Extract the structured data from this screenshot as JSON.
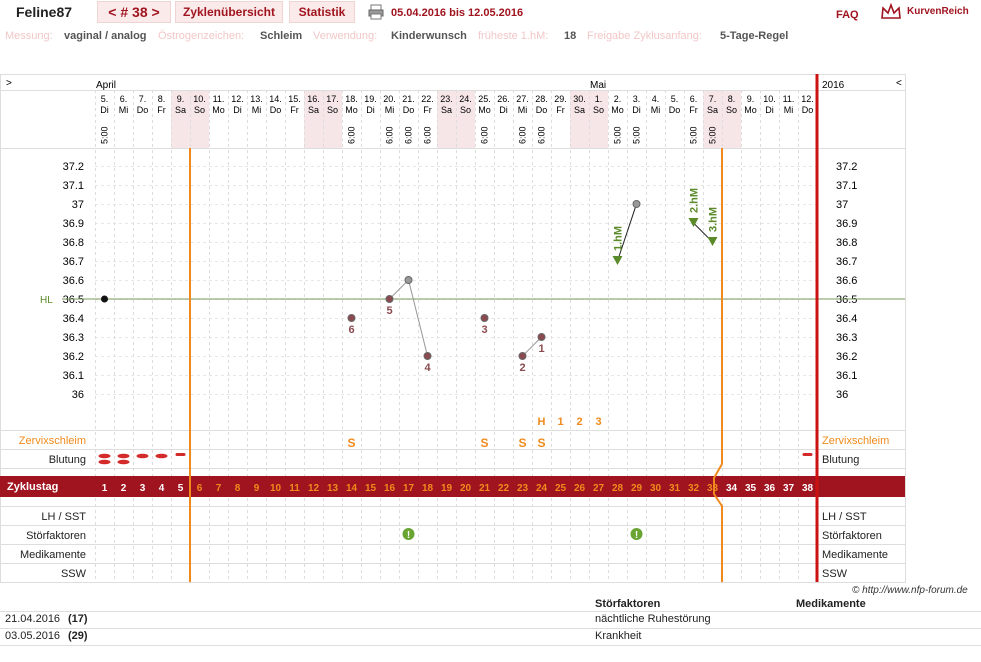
{
  "header": {
    "username": "Feline87",
    "cycle": "< # 38 >",
    "tab_overview": "Zyklenübersicht",
    "tab_stats": "Statistik",
    "date_range": "05.04.2016 bis 12.05.2016",
    "faq": "FAQ",
    "brand": "KurvenReich"
  },
  "meta": {
    "messung_label": "Messung:",
    "messung_value": "vaginal / analog",
    "oestrogen_label": "Östrogenzeichen:",
    "oestrogen_value": "Schleim",
    "verwendung_label": "Verwendung:",
    "verwendung_value": "Kinderwunsch",
    "frueheste_label": "früheste 1.hM:",
    "frueheste_value": "18",
    "freigabe_label": "Freigabe Zyklusanfang:",
    "freigabe_value": "5-Tage-Regel"
  },
  "chart": {
    "nav_left": ">",
    "nav_right": "<",
    "month_april": "April",
    "month_mai": "Mai",
    "year": "2016",
    "days": [
      {
        "d": "5.",
        "w": "Di",
        "t": "5:00",
        "we": false
      },
      {
        "d": "6.",
        "w": "Mi",
        "t": "",
        "we": false
      },
      {
        "d": "7.",
        "w": "Do",
        "t": "",
        "we": false
      },
      {
        "d": "8.",
        "w": "Fr",
        "t": "",
        "we": false
      },
      {
        "d": "9.",
        "w": "Sa",
        "t": "",
        "we": true
      },
      {
        "d": "10.",
        "w": "So",
        "t": "",
        "we": true
      },
      {
        "d": "11.",
        "w": "Mo",
        "t": "",
        "we": false
      },
      {
        "d": "12.",
        "w": "Di",
        "t": "",
        "we": false
      },
      {
        "d": "13.",
        "w": "Mi",
        "t": "",
        "we": false
      },
      {
        "d": "14.",
        "w": "Do",
        "t": "",
        "we": false
      },
      {
        "d": "15.",
        "w": "Fr",
        "t": "",
        "we": false
      },
      {
        "d": "16.",
        "w": "Sa",
        "t": "",
        "we": true
      },
      {
        "d": "17.",
        "w": "So",
        "t": "",
        "we": true
      },
      {
        "d": "18.",
        "w": "Mo",
        "t": "6:00",
        "we": false
      },
      {
        "d": "19.",
        "w": "Di",
        "t": "",
        "we": false
      },
      {
        "d": "20.",
        "w": "Mi",
        "t": "6:00",
        "we": false
      },
      {
        "d": "21.",
        "w": "Do",
        "t": "6:00",
        "we": false
      },
      {
        "d": "22.",
        "w": "Fr",
        "t": "6:00",
        "we": false
      },
      {
        "d": "23.",
        "w": "Sa",
        "t": "",
        "we": true
      },
      {
        "d": "24.",
        "w": "So",
        "t": "",
        "we": true
      },
      {
        "d": "25.",
        "w": "Mo",
        "t": "6:00",
        "we": false
      },
      {
        "d": "26.",
        "w": "Di",
        "t": "",
        "we": false
      },
      {
        "d": "27.",
        "w": "Mi",
        "t": "6:00",
        "we": false
      },
      {
        "d": "28.",
        "w": "Do",
        "t": "6:00",
        "we": false
      },
      {
        "d": "29.",
        "w": "Fr",
        "t": "",
        "we": false
      },
      {
        "d": "30.",
        "w": "Sa",
        "t": "",
        "we": true
      },
      {
        "d": "1.",
        "w": "So",
        "t": "",
        "we": true
      },
      {
        "d": "2.",
        "w": "Mo",
        "t": "5:00",
        "we": false
      },
      {
        "d": "3.",
        "w": "Di",
        "t": "5:00",
        "we": false
      },
      {
        "d": "4.",
        "w": "Mi",
        "t": "",
        "we": false
      },
      {
        "d": "5.",
        "w": "Do",
        "t": "",
        "we": false
      },
      {
        "d": "6.",
        "w": "Fr",
        "t": "5:00",
        "we": false
      },
      {
        "d": "7.",
        "w": "Sa",
        "t": "5:00",
        "we": true
      },
      {
        "d": "8.",
        "w": "So",
        "t": "",
        "we": true
      },
      {
        "d": "9.",
        "w": "Mo",
        "t": "",
        "we": false
      },
      {
        "d": "10.",
        "w": "Di",
        "t": "",
        "we": false
      },
      {
        "d": "11.",
        "w": "Mi",
        "t": "",
        "we": false
      },
      {
        "d": "12.",
        "w": "Do",
        "t": "",
        "we": false
      }
    ],
    "temp_ticks": [
      "37.2",
      "37.1",
      "37",
      "36.9",
      "36.8",
      "36.7",
      "36.6",
      "36.5",
      "36.4",
      "36.3",
      "36.2",
      "36.1",
      "36"
    ],
    "hl_label": "HL",
    "temps": [
      {
        "day": 1,
        "v": 36.5,
        "label": "",
        "kind": "start"
      },
      {
        "day": 14,
        "v": 36.4,
        "label": "6",
        "kind": "low"
      },
      {
        "day": 16,
        "v": 36.5,
        "label": "5",
        "kind": "low"
      },
      {
        "day": 17,
        "v": 36.6,
        "label": "",
        "kind": "grey"
      },
      {
        "day": 18,
        "v": 36.2,
        "label": "4",
        "kind": "low"
      },
      {
        "day": 21,
        "v": 36.4,
        "label": "3",
        "kind": "low"
      },
      {
        "day": 23,
        "v": 36.2,
        "label": "2",
        "kind": "low"
      },
      {
        "day": 24,
        "v": 36.3,
        "label": "1",
        "kind": "low"
      },
      {
        "day": 28,
        "v": 36.7,
        "label": "1.hM",
        "kind": "high"
      },
      {
        "day": 29,
        "v": 37.0,
        "label": "",
        "kind": "grey"
      },
      {
        "day": 32,
        "v": 36.9,
        "label": "2.hM",
        "kind": "high"
      },
      {
        "day": 33,
        "v": 36.8,
        "label": "3.hM",
        "kind": "high"
      }
    ],
    "mucus_markers": [
      {
        "day": 24,
        "text": "H"
      },
      {
        "day": 25,
        "text": "1"
      },
      {
        "day": 26,
        "text": "2"
      },
      {
        "day": 27,
        "text": "3"
      }
    ],
    "rows": {
      "zervix": "Zervixschleim",
      "blutung": "Blutung",
      "zyklustag": "Zyklustag",
      "lh": "LH / SST",
      "stoer": "Störfaktoren",
      "medi": "Medikamente",
      "ssw": "SSW"
    },
    "zervix_marks": [
      {
        "day": 14,
        "text": "S"
      },
      {
        "day": 21,
        "text": "S"
      },
      {
        "day": 23,
        "text": "S"
      },
      {
        "day": 24,
        "text": "S"
      }
    ],
    "stoer_days": [
      17,
      29
    ],
    "bleeding": [
      {
        "day": 1,
        "n": 2
      },
      {
        "day": 2,
        "n": 2
      },
      {
        "day": 3,
        "n": 1
      },
      {
        "day": 4,
        "n": 1
      },
      {
        "day": 5,
        "n": 0
      },
      {
        "day": 38,
        "n": 0
      }
    ],
    "copyright": "© http://www.nfp-forum.de"
  },
  "bottom": {
    "col_stoer": "Störfaktoren",
    "col_medi": "Medikamente",
    "rows": [
      {
        "date": "21.04.2016",
        "day": "(17)",
        "stoer": "nächtliche Ruhestörung"
      },
      {
        "date": "03.05.2016",
        "day": "(29)",
        "stoer": "Krankheit"
      }
    ]
  },
  "colors": {
    "accent": "#a0141f",
    "orange": "#f08a1c",
    "green": "#5a8a2a",
    "low_dot": "#8a4a50",
    "weekend": "#f6e6e8"
  }
}
